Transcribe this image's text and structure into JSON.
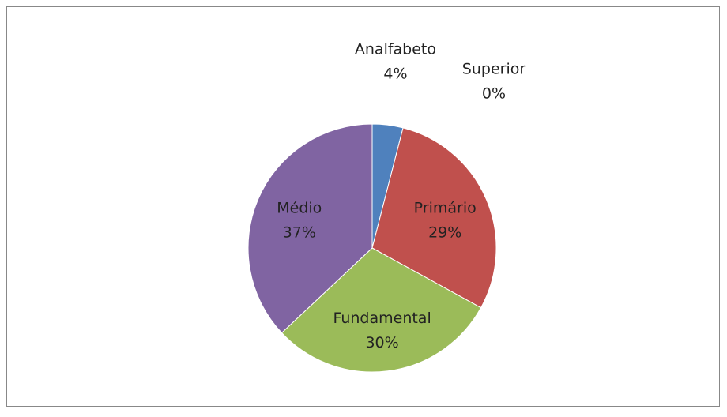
{
  "chart_data": {
    "type": "pie",
    "categories": [
      "Analfabeto",
      "Primário",
      "Fundamental",
      "Médio",
      "Superior"
    ],
    "values": [
      4,
      29,
      30,
      37,
      0
    ],
    "value_labels": [
      "4%",
      "29%",
      "30%",
      "37%",
      "0%"
    ],
    "colors": [
      "#4f81bd",
      "#c0504d",
      "#9bbb59",
      "#8064a2",
      "#4bacc6"
    ]
  }
}
